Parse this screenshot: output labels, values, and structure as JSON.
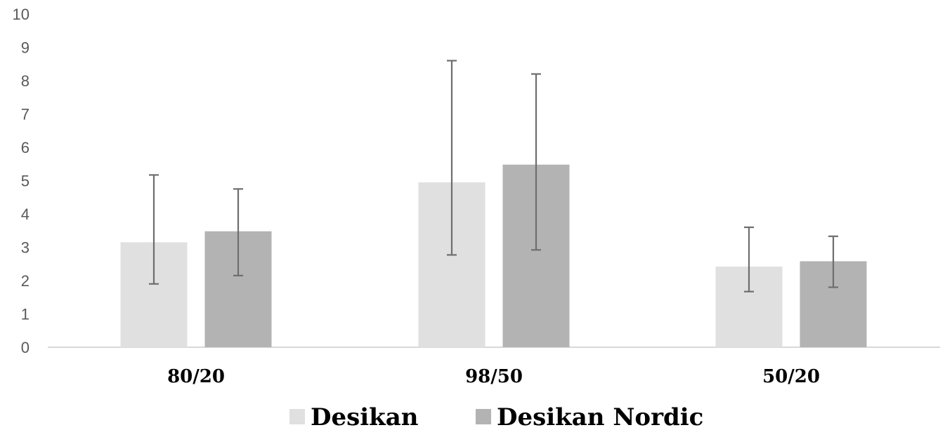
{
  "chart_data": {
    "type": "bar",
    "categories": [
      "80/20",
      "98/50",
      "50/20"
    ],
    "series": [
      {
        "name": "Desikan",
        "color": "#e0e0e0",
        "values": [
          3.15,
          4.95,
          2.42
        ],
        "error_low": [
          1.9,
          2.77,
          1.67
        ],
        "error_high": [
          5.17,
          8.6,
          3.6
        ]
      },
      {
        "name": "Desikan Nordic",
        "color": "#b3b3b3",
        "values": [
          3.48,
          5.48,
          2.58
        ],
        "error_low": [
          2.15,
          2.92,
          1.8
        ],
        "error_high": [
          4.75,
          8.2,
          3.33
        ]
      }
    ],
    "ylim": [
      0,
      10
    ],
    "yticks": [
      "0",
      "1",
      "2",
      "3",
      "4",
      "5",
      "6",
      "7",
      "8",
      "9",
      "10"
    ],
    "grid": false,
    "legend_position": "bottom",
    "error_bar_color": "#6e6e6e",
    "axis_color": "#d9d9d9"
  }
}
